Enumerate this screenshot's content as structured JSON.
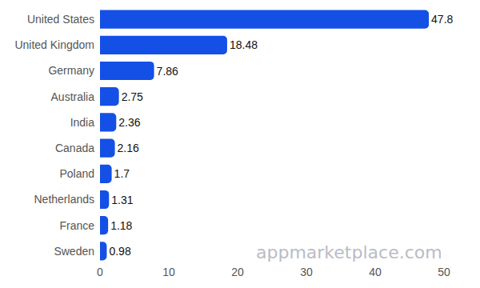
{
  "chart_data": {
    "type": "bar",
    "orientation": "horizontal",
    "categories": [
      "United States",
      "United Kingdom",
      "Germany",
      "Australia",
      "India",
      "Canada",
      "Poland",
      "Netherlands",
      "France",
      "Sweden"
    ],
    "values": [
      47.8,
      18.48,
      7.86,
      2.75,
      2.36,
      2.16,
      1.7,
      1.31,
      1.18,
      0.98
    ],
    "color": "#1450e6",
    "xlim": [
      0,
      50
    ],
    "xticks": [
      0,
      10,
      20,
      30,
      40,
      50
    ],
    "grid": false,
    "data_labels": true,
    "annotations": [
      "appmarketplace.com"
    ]
  }
}
